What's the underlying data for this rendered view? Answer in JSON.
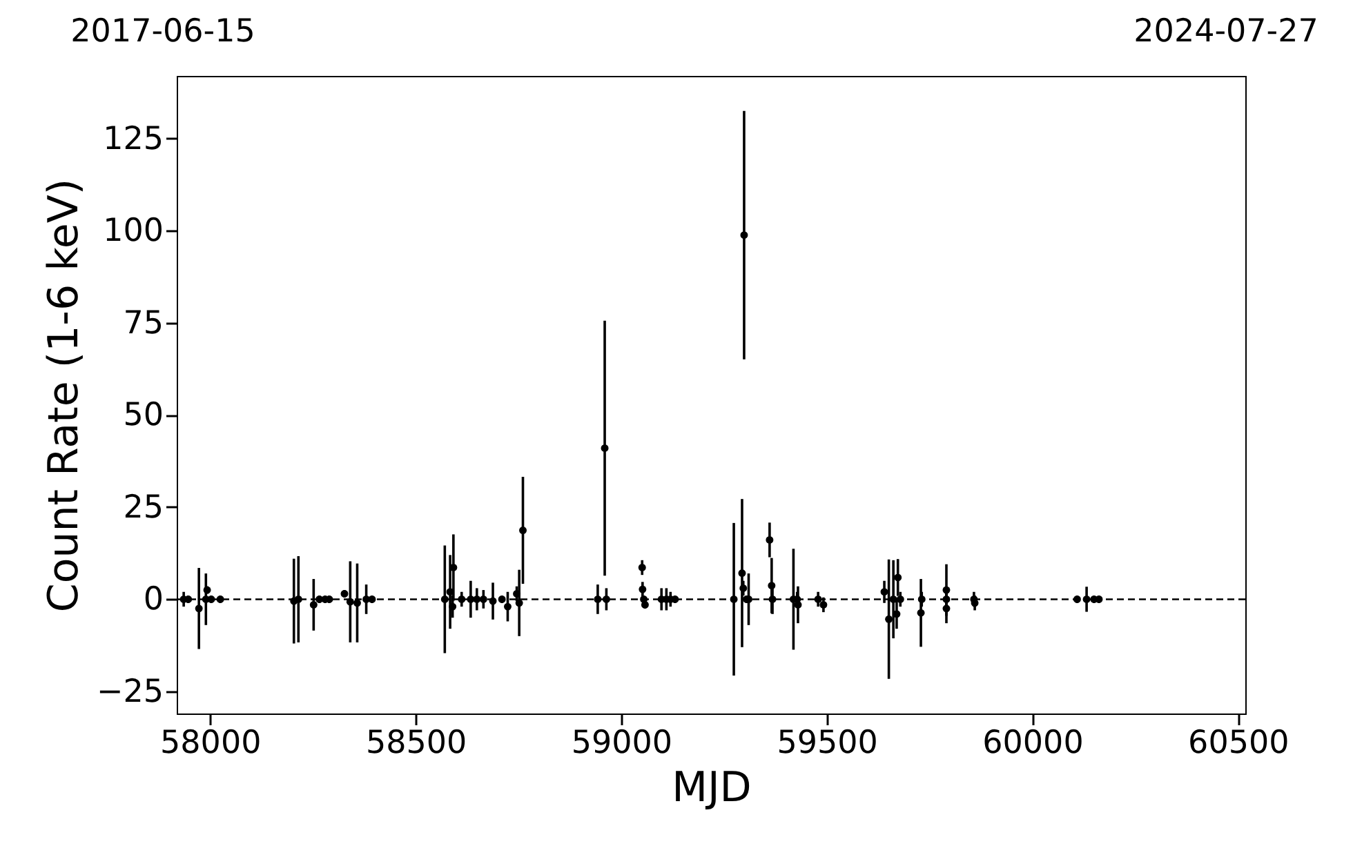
{
  "chart_data": {
    "type": "scatter",
    "xlabel": "MJD",
    "ylabel": "Count Rate (1-6 keV)",
    "annotations": [
      "2017-06-15",
      "2024-07-27"
    ],
    "x": [
      57936,
      57947,
      57973,
      57990,
      57993,
      58003,
      58025,
      58204,
      58215,
      58252,
      58266,
      58280,
      58290,
      58327,
      58341,
      58358,
      58380,
      58394,
      58571,
      58584,
      58592,
      58590,
      58612,
      58634,
      58649,
      58665,
      58688,
      58710,
      58724,
      58746,
      58752,
      58761,
      58943,
      58960,
      58964,
      59051,
      59052,
      59055,
      59058,
      59098,
      59110,
      59120,
      59131,
      59274,
      59294,
      59299,
      59297,
      59305,
      59310,
      59361,
      59366,
      59368,
      59419,
      59428,
      59430,
      59479,
      59492,
      59640,
      59651,
      59662,
      59673,
      59670,
      59679,
      59729,
      59731,
      59791,
      59791,
      59791,
      59858,
      59860,
      60109,
      60132,
      60150,
      60162
    ],
    "values": [
      0,
      0,
      -2.5,
      0,
      2.5,
      0,
      0,
      -0.5,
      0,
      -1.5,
      0,
      0,
      0,
      1.5,
      -0.7,
      -1,
      0,
      0,
      0,
      2,
      8.6,
      -2,
      0,
      0,
      0,
      0,
      -0.5,
      0,
      -2,
      1.5,
      -1,
      18.7,
      0,
      41,
      0,
      8.6,
      2.7,
      0,
      -1.5,
      0,
      0,
      0,
      0,
      0,
      7.1,
      98.8,
      3,
      0,
      0,
      16.1,
      3.7,
      0,
      0,
      0,
      -1.5,
      0,
      -1.5,
      2,
      -5.4,
      0,
      5.9,
      -4,
      0,
      -3.7,
      0,
      2.5,
      0,
      -2.5,
      0,
      -1,
      0,
      0,
      0,
      0
    ],
    "errors": [
      2,
      1,
      11,
      7,
      1,
      1,
      1,
      11.5,
      11.7,
      7,
      1,
      1,
      1,
      1,
      11,
      10.7,
      4,
      1,
      14.6,
      10,
      9,
      3,
      2,
      5,
      3,
      2.5,
      5,
      1,
      4,
      2,
      9,
      14.5,
      4,
      34.6,
      3,
      2,
      2,
      1,
      1,
      3,
      3,
      2,
      1,
      20.7,
      20.1,
      33.7,
      2,
      1,
      7,
      4.7,
      7.5,
      4,
      13.7,
      2,
      5,
      2,
      2,
      3,
      16.2,
      10.6,
      5,
      4,
      2,
      9.2,
      2,
      7,
      2,
      4,
      2,
      2,
      1,
      3.4,
      1,
      1
    ],
    "color": "#000000",
    "marker": "circle",
    "xlim": [
      57919,
      60518
    ],
    "xticks": [
      58000,
      58500,
      59000,
      59500,
      60000,
      60500
    ],
    "ylim": [
      -31,
      142
    ],
    "yticks": [
      -25,
      0,
      25,
      50,
      75,
      100,
      125
    ],
    "ref_lines": [
      {
        "axis": "y",
        "value": 0,
        "color": "#000000",
        "line_style": "dashed"
      }
    ],
    "grid": false
  }
}
